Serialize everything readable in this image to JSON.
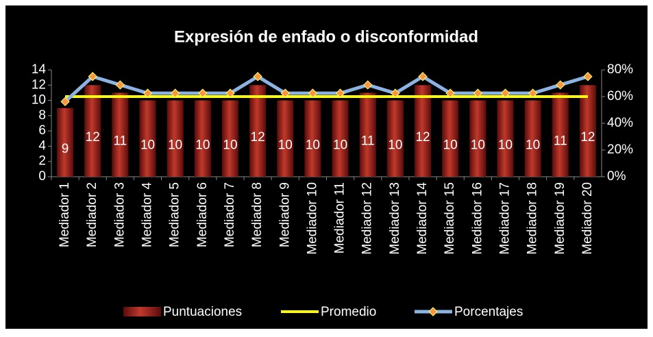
{
  "chart_data": {
    "type": "bar",
    "title": "Expresión de enfado o disconformidad",
    "categories": [
      "Mediador 1",
      "Mediador 2",
      "Mediador 3",
      "Mediador 4",
      "Mediador 5",
      "Mediador 6",
      "Mediador 7",
      "Mediador 8",
      "Mediador 9",
      "Mediador 10",
      "Mediador 11",
      "Mediador 12",
      "Mediador 13",
      "Mediador 14",
      "Mediador 15",
      "Mediador 16",
      "Mediador 17",
      "Mediador 18",
      "Mediador 19",
      "Mediador 20"
    ],
    "series": [
      {
        "name": "Puntuaciones",
        "type": "bar",
        "color": "#9b1c1c",
        "data_labels": true,
        "values": [
          9,
          12,
          11,
          10,
          10,
          10,
          10,
          12,
          10,
          10,
          10,
          11,
          10,
          12,
          10,
          10,
          10,
          10,
          11,
          12
        ]
      },
      {
        "name": "Promedio",
        "type": "line",
        "color": "#ffff00",
        "values": [
          10.5,
          10.5,
          10.5,
          10.5,
          10.5,
          10.5,
          10.5,
          10.5,
          10.5,
          10.5,
          10.5,
          10.5,
          10.5,
          10.5,
          10.5,
          10.5,
          10.5,
          10.5,
          10.5,
          10.5
        ]
      },
      {
        "name": "Porcentajes",
        "type": "line",
        "axis": "y2",
        "color": "#8db3e2",
        "marker_color": "#f79646",
        "values": [
          56.25,
          75,
          68.75,
          62.5,
          62.5,
          62.5,
          62.5,
          75,
          62.5,
          62.5,
          62.5,
          68.75,
          62.5,
          75,
          62.5,
          62.5,
          62.5,
          62.5,
          68.75,
          75
        ]
      }
    ],
    "ylim": [
      0,
      14
    ],
    "yticks": [
      0,
      2,
      4,
      6,
      8,
      10,
      12,
      14
    ],
    "y2lim": [
      0,
      80
    ],
    "y2ticks": [
      {
        "value": 0,
        "label": "0%"
      },
      {
        "value": 20,
        "label": "20%"
      },
      {
        "value": 40,
        "label": "40%"
      },
      {
        "value": 60,
        "label": "60%"
      },
      {
        "value": 80,
        "label": "80%"
      }
    ],
    "grid": false,
    "legend": "bottom"
  }
}
